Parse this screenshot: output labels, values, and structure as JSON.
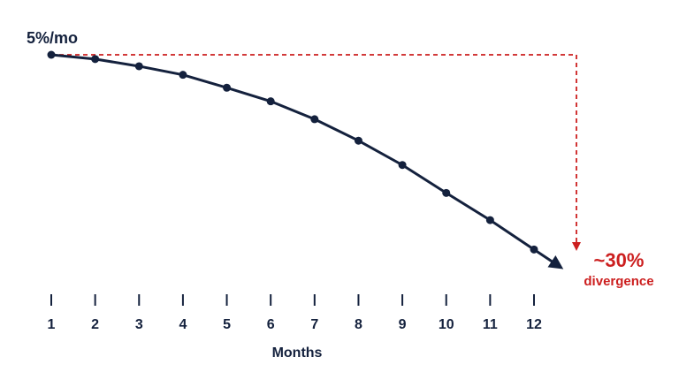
{
  "chart_data": {
    "type": "line",
    "start_label": "5%/mo",
    "annotations": [
      "~30%",
      "divergence"
    ],
    "xlabel": "Months",
    "x": [
      1,
      2,
      3,
      4,
      5,
      6,
      7,
      8,
      9,
      10,
      11,
      12
    ],
    "xlim": [
      1,
      12
    ],
    "xticks": [
      1,
      2,
      3,
      4,
      5,
      6,
      7,
      8,
      9,
      10,
      11,
      12
    ],
    "values": [
      0,
      0.6,
      1.6,
      2.8,
      4.6,
      6.5,
      9.0,
      12.0,
      15.4,
      19.3,
      23.1,
      27.2
    ],
    "ylim": [
      30,
      0
    ],
    "color": "#14213d",
    "annotation_color": "#cc1f1f"
  }
}
